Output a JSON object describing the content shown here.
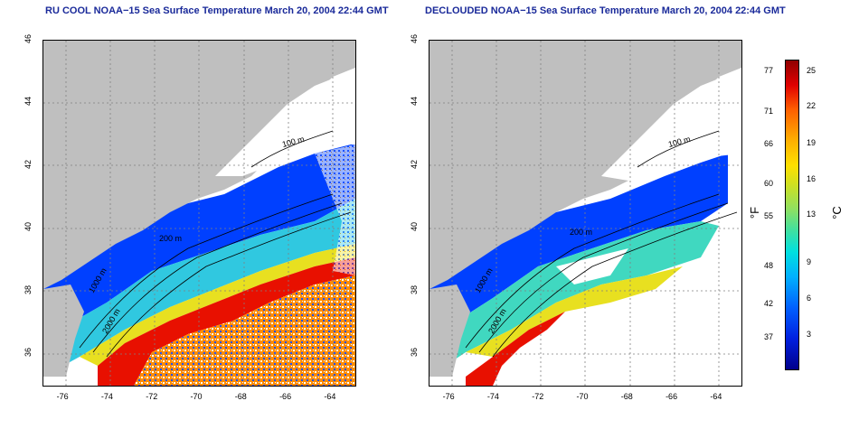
{
  "titles": {
    "left": "RU COOL NOAA−15 Sea Surface Temperature March 20, 2004 22:44 GMT",
    "right": "DECLOUDED NOAA−15 Sea Surface Temperature March 20, 2004 22:44 GMT"
  },
  "map": {
    "lon_range": [
      -77,
      -63
    ],
    "lat_range": [
      35,
      46
    ],
    "lon_ticks": [
      "-76",
      "-74",
      "-72",
      "-70",
      "-68",
      "-66",
      "-64"
    ],
    "lat_ticks": [
      "46",
      "44",
      "42",
      "40",
      "38",
      "36"
    ],
    "lat_tick_values": [
      46,
      44,
      42,
      40,
      38,
      36
    ],
    "lon_tick_values": [
      -76,
      -74,
      -72,
      -70,
      -68,
      -66,
      -64
    ],
    "contours": {
      "c100": "100 m",
      "c200": "200 m",
      "c1000": "1000 m",
      "c2000": "2000 m"
    }
  },
  "colorbar": {
    "fahrenheit_unit": "°F",
    "celsius_unit": "°C",
    "fahrenheit": [
      "77",
      "71",
      "66",
      "60",
      "55",
      "48",
      "42",
      "37"
    ],
    "celsius": [
      "25",
      "22",
      "19",
      "16",
      "13",
      "9",
      "6",
      "3"
    ]
  },
  "colors": {
    "land": "#bfbfbf",
    "title": "#1a2a9a",
    "grid": "#808080"
  }
}
